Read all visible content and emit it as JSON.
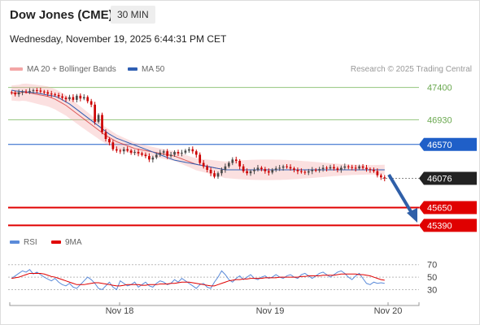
{
  "header": {
    "title": "Dow Jones (CME)",
    "timeframe": "30 MIN",
    "date": "Wednesday, November 19, 2025 6:44:31 PM CET"
  },
  "legend": {
    "bollinger": "MA 20 + Bollinger Bands",
    "ma50": "MA 50",
    "credit": "Research © 2025 Trading Central"
  },
  "rsi_legend": {
    "rsi": "RSI",
    "ma": "9MA"
  },
  "colors": {
    "bollinger": "#f3a6a6",
    "ma50": "#2f5fb3",
    "resistance": "#93c47d",
    "pivot": "#1f5fc8",
    "support": "#e00000",
    "bullish": "#4a4a4a",
    "bearish": "#cc0000",
    "rsi": "#5b8bd9",
    "rsi_ma": "#e00000",
    "arrow": "#2f5fa8"
  },
  "chart_data": [
    {
      "type": "candlestick",
      "title": "Dow Jones (CME)",
      "x_ticks": [
        "Nov 18",
        "Nov 19",
        "Nov 20"
      ],
      "ylim": [
        45300,
        47550
      ],
      "levels": [
        {
          "value": 47400,
          "label": "47400",
          "kind": "resistance"
        },
        {
          "value": 46930,
          "label": "46930",
          "kind": "resistance"
        },
        {
          "value": 46570,
          "label": "46570",
          "kind": "pivot"
        },
        {
          "value": 46076,
          "label": "46076",
          "kind": "last"
        },
        {
          "value": 45650,
          "label": "45650",
          "kind": "support"
        },
        {
          "value": 45390,
          "label": "45390",
          "kind": "support"
        }
      ],
      "close": [
        47320,
        47300,
        47330,
        47340,
        47335,
        47350,
        47360,
        47355,
        47340,
        47330,
        47310,
        47300,
        47290,
        47270,
        47250,
        47230,
        47260,
        47220,
        47280,
        47240,
        47260,
        47200,
        47150,
        46900,
        47000,
        46750,
        46650,
        46600,
        46500,
        46480,
        46470,
        46500,
        46480,
        46450,
        46460,
        46440,
        46420,
        46400,
        46350,
        46380,
        46420,
        46450,
        46470,
        46400,
        46420,
        46460,
        46440,
        46450,
        46480,
        46500,
        46470,
        46420,
        46300,
        46250,
        46200,
        46150,
        46100,
        46150,
        46200,
        46250,
        46300,
        46350,
        46330,
        46250,
        46180,
        46150,
        46180,
        46200,
        46230,
        46210,
        46180,
        46160,
        46200,
        46220,
        46230,
        46250,
        46240,
        46220,
        46200,
        46180,
        46170,
        46160,
        46180,
        46200,
        46190,
        46210,
        46230,
        46220,
        46240,
        46220,
        46200,
        46230,
        46250,
        46240,
        46230,
        46220,
        46250,
        46230,
        46210,
        46200,
        46180,
        46120,
        46090,
        46076
      ],
      "series": [
        {
          "name": "MA 50",
          "values": [
            47360,
            47350,
            47345,
            47340,
            47335,
            47330,
            47325,
            47320,
            47310,
            47300,
            47290,
            47280,
            47270,
            47250,
            47220,
            47190,
            47160,
            47120,
            47080,
            47040,
            47000,
            46960,
            46920,
            46880,
            46840,
            46800,
            46760,
            46720,
            46690,
            46660,
            46640,
            46620,
            46600,
            46580,
            46560,
            46540,
            46520,
            46500,
            46480,
            46460,
            46440,
            46420,
            46400,
            46380,
            46360,
            46340,
            46330,
            46320,
            46310,
            46300,
            46290,
            46280,
            46270,
            46260,
            46250,
            46240,
            46230,
            46220,
            46210,
            46200,
            46200,
            46200,
            46200,
            46200,
            46200,
            46200,
            46200,
            46200,
            46200,
            46200,
            46200,
            46200,
            46200,
            46200,
            46200,
            46200,
            46200,
            46200,
            46200,
            46200,
            46200,
            46200,
            46200,
            46200,
            46200,
            46200,
            46200,
            46200,
            46200,
            46200,
            46200,
            46200,
            46200,
            46200,
            46200,
            46200,
            46200,
            46200,
            46200,
            46200,
            46200,
            46200,
            46200,
            46200
          ]
        },
        {
          "name": "MA 20",
          "values": [
            47320,
            47320,
            47320,
            47330,
            47330,
            47320,
            47310,
            47300,
            47290,
            47280,
            47270,
            47250,
            47230,
            47200,
            47170,
            47140,
            47100,
            47060,
            47020,
            46980,
            46940,
            46900,
            46860,
            46820,
            46780,
            46740,
            46700,
            46670,
            46640,
            46610,
            46590,
            46570,
            46550,
            46530,
            46510,
            46500,
            46490,
            46480,
            46470,
            46460,
            46450,
            46440,
            46430,
            46420,
            46410,
            46400,
            46380,
            46360,
            46340,
            46320,
            46300,
            46280,
            46270,
            46260,
            46250,
            46240,
            46230,
            46220,
            46210,
            46200,
            46200,
            46200,
            46200,
            46200,
            46200,
            46200,
            46200,
            46200,
            46200,
            46200,
            46200,
            46200,
            46200,
            46200,
            46200,
            46200,
            46200,
            46200,
            46200,
            46200,
            46200,
            46200,
            46200,
            46200,
            46200,
            46200,
            46200,
            46200,
            46200,
            46200,
            46200,
            46200,
            46200,
            46200,
            46200,
            46200,
            46200,
            46200,
            46200,
            46200,
            46200,
            46200,
            46200,
            46200
          ]
        }
      ]
    },
    {
      "type": "line",
      "title": "RSI",
      "y_ticks": [
        30,
        50,
        70
      ],
      "ylim": [
        15,
        80
      ],
      "series": [
        {
          "name": "RSI",
          "values": [
            48,
            52,
            56,
            60,
            58,
            62,
            55,
            58,
            54,
            50,
            47,
            44,
            48,
            42,
            38,
            36,
            40,
            34,
            32,
            38,
            44,
            50,
            46,
            40,
            32,
            30,
            36,
            42,
            34,
            30,
            44,
            40,
            36,
            38,
            42,
            34,
            38,
            42,
            36,
            34,
            40,
            44,
            42,
            38,
            40,
            46,
            42,
            48,
            44,
            40,
            36,
            32,
            38,
            40,
            34,
            32,
            42,
            50,
            60,
            54,
            46,
            42,
            48,
            52,
            46,
            50,
            54,
            48,
            46,
            50,
            52,
            48,
            50,
            54,
            50,
            48,
            52,
            54,
            50,
            48,
            54,
            56,
            52,
            48,
            52,
            56,
            58,
            54,
            50,
            54,
            58,
            60,
            56,
            50,
            46,
            52,
            56,
            48,
            40,
            38,
            42,
            40,
            41,
            40
          ]
        },
        {
          "name": "9MA",
          "values": [
            48,
            49,
            50,
            52,
            54,
            56,
            56,
            56,
            56,
            55,
            53,
            51,
            50,
            48,
            46,
            44,
            42,
            40,
            38,
            38,
            38,
            39,
            40,
            41,
            41,
            40,
            39,
            38,
            37,
            36,
            36,
            37,
            38,
            38,
            38,
            38,
            37,
            37,
            38,
            38,
            38,
            39,
            39,
            39,
            40,
            40,
            41,
            42,
            42,
            42,
            41,
            40,
            39,
            38,
            37,
            36,
            36,
            38,
            40,
            42,
            44,
            45,
            46,
            46,
            47,
            47,
            48,
            48,
            48,
            48,
            49,
            49,
            49,
            49,
            50,
            50,
            50,
            50,
            50,
            50,
            51,
            51,
            52,
            52,
            52,
            52,
            53,
            53,
            53,
            53,
            54,
            55,
            55,
            55,
            55,
            55,
            54,
            54,
            53,
            52,
            50,
            48,
            46,
            45
          ]
        }
      ]
    }
  ]
}
